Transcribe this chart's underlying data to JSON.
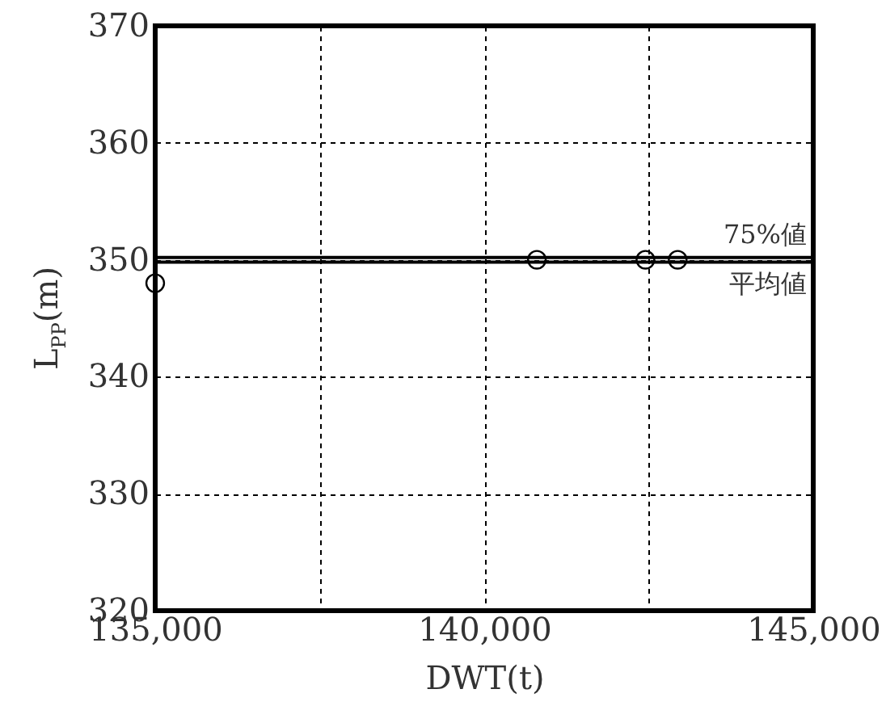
{
  "chart_data": {
    "type": "scatter",
    "xlabel": "DWT(t)",
    "ylabel": "L$_{PP}$(m)",
    "x": [
      135000,
      140800,
      142450,
      142940
    ],
    "values": [
      348,
      350,
      350,
      350
    ],
    "color": "#000000",
    "marker": "circle",
    "grid": true,
    "xlim": [
      135000,
      145000
    ],
    "ylim": [
      320,
      370
    ],
    "xticks": [
      {
        "value": 135000,
        "label": "135,000"
      },
      {
        "value": 137500,
        "label": null
      },
      {
        "value": 140000,
        "label": "140,000"
      },
      {
        "value": 142500,
        "label": null
      },
      {
        "value": 145000,
        "label": "145,000"
      }
    ],
    "yticks": [
      320,
      330,
      340,
      350,
      360,
      370
    ],
    "ref_lines": [
      {
        "axis": "y",
        "value": 350.2,
        "label": "75%値",
        "color": "#000000",
        "line_style": "solid"
      },
      {
        "axis": "y",
        "value": 349.8,
        "label": "平均値",
        "color": "#000000",
        "line_style": "solid"
      }
    ]
  }
}
